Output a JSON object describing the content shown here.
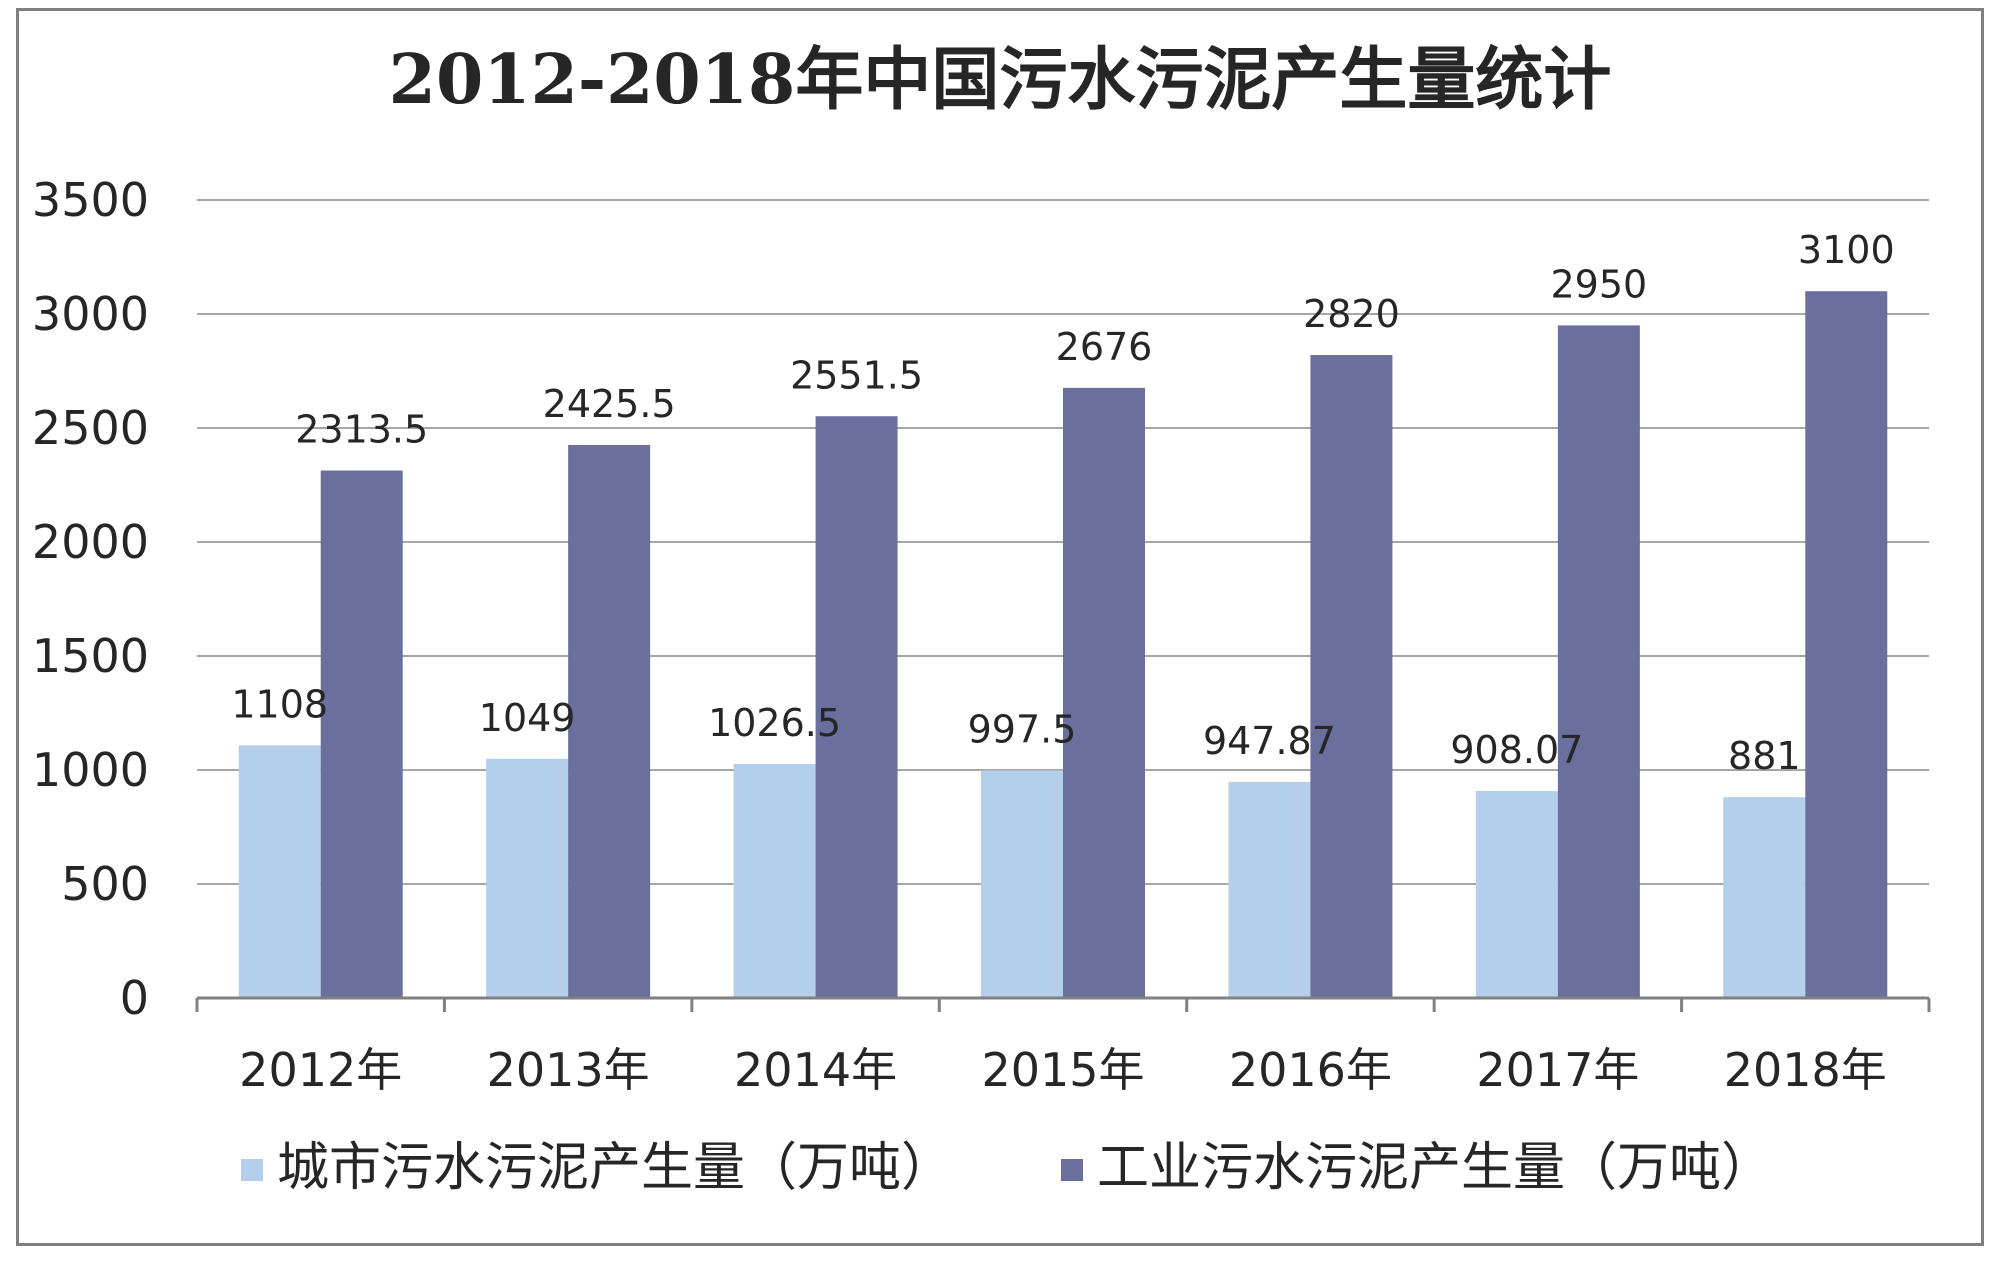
{
  "chart_data": {
    "type": "bar",
    "title": "2012-2018年中国污水污泥产生量统计",
    "categories": [
      "2012年",
      "2013年",
      "2014年",
      "2015年",
      "2016年",
      "2017年",
      "2018年"
    ],
    "series": [
      {
        "name": "城市污水污泥产生量（万吨）",
        "values": [
          1108,
          1049,
          1026.5,
          997.5,
          947.87,
          908.07,
          881
        ],
        "labels": [
          "1108",
          "1049",
          "1026.5",
          "997.5",
          "947.87",
          "908.07",
          "881"
        ],
        "color": "#b4cfec"
      },
      {
        "name": "工业污水污泥产生量（万吨）",
        "values": [
          2313.5,
          2425.5,
          2551.5,
          2676,
          2820,
          2950,
          3100
        ],
        "labels": [
          "2313.5",
          "2425.5",
          "2551.5",
          "2676",
          "2820",
          "2950",
          "3100"
        ],
        "color": "#6a6f9e"
      }
    ],
    "ylim": [
      0,
      3500
    ],
    "yticks": [
      0,
      500,
      1000,
      1500,
      2000,
      2500,
      3000,
      3500
    ],
    "grid": true,
    "legend_position": "bottom",
    "gridline_color": "#a6a6a6",
    "axis_color": "#808080"
  }
}
